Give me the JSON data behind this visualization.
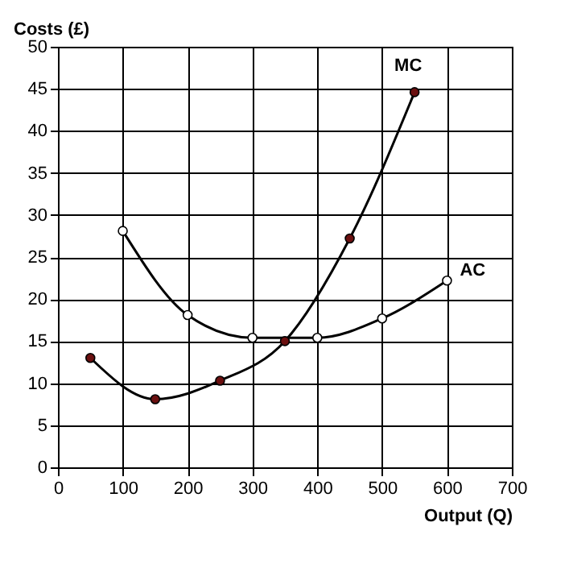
{
  "chart_data": {
    "type": "line",
    "ylabel": "Costs (£)",
    "xlabel": "Output (Q)",
    "xlim": [
      0,
      700
    ],
    "xticks": [
      0,
      100,
      200,
      300,
      400,
      500,
      600,
      700
    ],
    "ylim": [
      0,
      50
    ],
    "yticks": [
      0,
      5,
      10,
      15,
      20,
      25,
      30,
      35,
      40,
      45,
      50
    ],
    "grid": true,
    "marker": "circle",
    "line_style": "solid",
    "legend": false,
    "series": [
      {
        "name": "MC",
        "color": "#6b1010",
        "x": [
          50,
          150,
          250,
          350,
          450,
          550
        ],
        "values": [
          13,
          8.1,
          10.3,
          15,
          27.2,
          44.6
        ]
      },
      {
        "name": "AC",
        "color": "#ffffff",
        "x": [
          100,
          200,
          300,
          400,
          500,
          600
        ],
        "values": [
          28.1,
          18.1,
          15.4,
          15.4,
          17.7,
          22.2
        ]
      }
    ]
  }
}
